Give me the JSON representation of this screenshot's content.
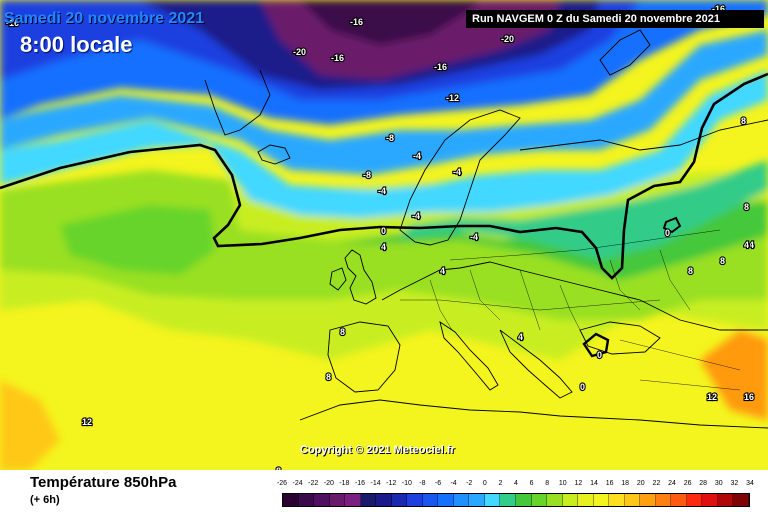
{
  "header": {
    "date_title": "Samedi 20 novembre 2021",
    "time_title": "8:00 locale",
    "run_banner": "Run NAVGEM 0 Z du Samedi 20 novembre 2021"
  },
  "copyright": "Copyright © 2021 Meteociel.fr",
  "footer": {
    "parameter_title": "Température 850hPa",
    "forecast_step": "(+ 6h)"
  },
  "colors": {
    "dark_purple": "#3a0a4a",
    "purple": "#6a1a6a",
    "navy": "#1a1a8a",
    "blue": "#1f3fe0",
    "mid_blue": "#1670ff",
    "light_blue": "#2aa8ff",
    "cyan": "#42d8ff",
    "teal_green": "#33cc88",
    "green": "#44c83a",
    "lime": "#99e020",
    "yellow_green": "#c8ee20",
    "yellow": "#f4f41e",
    "orange": "#ff9a10",
    "zero_isotherm": "#000000"
  },
  "legend": {
    "scale_values": [
      "-26",
      "-24",
      "-22",
      "-20",
      "-18",
      "-16",
      "-14",
      "-12",
      "-10",
      "-8",
      "-6",
      "-4",
      "-2",
      "0",
      "2",
      "4",
      "6",
      "8",
      "10",
      "12",
      "14",
      "16",
      "18",
      "20",
      "22",
      "24",
      "26",
      "28",
      "30",
      "32",
      "34"
    ],
    "scale_colors": [
      "#2a0030",
      "#3a0a4a",
      "#501060",
      "#6a1a6a",
      "#7a2080",
      "#1a1a6a",
      "#1a1a8a",
      "#1a2ab0",
      "#1f3fe0",
      "#1a56f0",
      "#1670ff",
      "#2090ff",
      "#2aa8ff",
      "#42d8ff",
      "#33cc88",
      "#44c83a",
      "#66d42a",
      "#99e020",
      "#c8ee20",
      "#e8f020",
      "#f4f41e",
      "#ffe020",
      "#ffc818",
      "#ffa010",
      "#ff8010",
      "#ff5a10",
      "#ff2a10",
      "#e01010",
      "#b00808",
      "#800404"
    ]
  },
  "isotherm_labels": [
    {
      "text": "-16"
    },
    {
      "text": "-20"
    },
    {
      "text": "-16"
    },
    {
      "text": "-16"
    },
    {
      "text": "-20"
    },
    {
      "text": "-16"
    },
    {
      "text": "-12"
    },
    {
      "text": "-8"
    },
    {
      "text": "-4"
    },
    {
      "text": "-4"
    },
    {
      "text": "-8"
    },
    {
      "text": "-4"
    },
    {
      "text": "-4"
    },
    {
      "text": "0"
    },
    {
      "text": "-4"
    },
    {
      "text": "4"
    },
    {
      "text": "4"
    },
    {
      "text": "8"
    },
    {
      "text": "8"
    },
    {
      "text": "8"
    },
    {
      "text": "4"
    },
    {
      "text": "0"
    },
    {
      "text": "4"
    },
    {
      "text": "8"
    },
    {
      "text": "8"
    },
    {
      "text": "4"
    },
    {
      "text": "0"
    },
    {
      "text": "0"
    },
    {
      "text": "12"
    },
    {
      "text": "16"
    },
    {
      "text": "12"
    },
    {
      "text": "8"
    },
    {
      "text": "8"
    },
    {
      "text": "-16"
    }
  ]
}
